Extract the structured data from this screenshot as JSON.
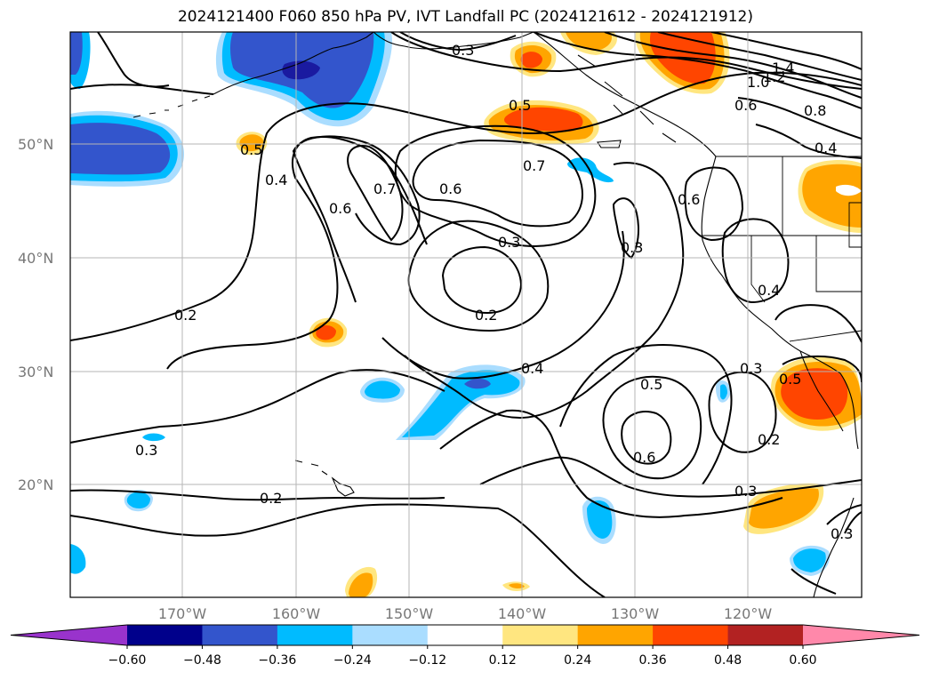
{
  "title": "2024121400 F060 850 hPa PV, IVT Landfall PC (2024121612 - 2024121912)",
  "lat_labels": [
    "50°N",
    "40°N",
    "30°N",
    "20°N"
  ],
  "lon_labels": [
    "170°W",
    "160°W",
    "150°W",
    "140°W",
    "130°W",
    "120°W"
  ],
  "contour_labels": [
    "0.3",
    "0.5",
    "0.5",
    "0.4",
    "0.7",
    "0.6",
    "0.6",
    "0.7",
    "0.6",
    "0.3",
    "0.3",
    "0.2",
    "0.2",
    "0.4",
    "0.5",
    "0.6",
    "0.3",
    "0.2",
    "0.3",
    "0.2",
    "0.3",
    "0.5",
    "0.4",
    "0.6",
    "0.8",
    "1.0",
    "1.2",
    "1.4",
    "0.4",
    "0.3"
  ],
  "colorbar": {
    "ticks": [
      "−0.60",
      "−0.48",
      "−0.36",
      "−0.24",
      "−0.12",
      "0.12",
      "0.24",
      "0.36",
      "0.48",
      "0.60"
    ],
    "colors": [
      "#9933cc",
      "#00008b",
      "#3355cc",
      "#00bbff",
      "#aaddff",
      "#ffffff",
      "#ffe680",
      "#ffa500",
      "#ff4500",
      "#b22222",
      "#ff88aa"
    ]
  },
  "fill_colors": {
    "dark_blue": "#3355cc",
    "navy": "#1a1aa0",
    "blue": "#00bbff",
    "light_blue": "#aaddff",
    "yellow": "#ffe680",
    "orange": "#ffa500",
    "red_orange": "#ff4500",
    "dark_red": "#b22222"
  },
  "chart_data": {
    "type": "map-contour",
    "title": "2024121400 F060 850 hPa PV, IVT Landfall PC (2024121612 - 2024121912)",
    "lon_range": [
      "-180",
      "-110"
    ],
    "lat_range": [
      10,
      60
    ],
    "grid": true,
    "contour_levels": [
      0.2,
      0.3,
      0.4,
      0.5,
      0.6,
      0.7,
      0.8,
      1.0,
      1.2,
      1.4
    ],
    "fill_levels": [
      -0.6,
      -0.48,
      -0.36,
      -0.24,
      -0.12,
      0.12,
      0.24,
      0.36,
      0.48,
      0.6
    ]
  }
}
